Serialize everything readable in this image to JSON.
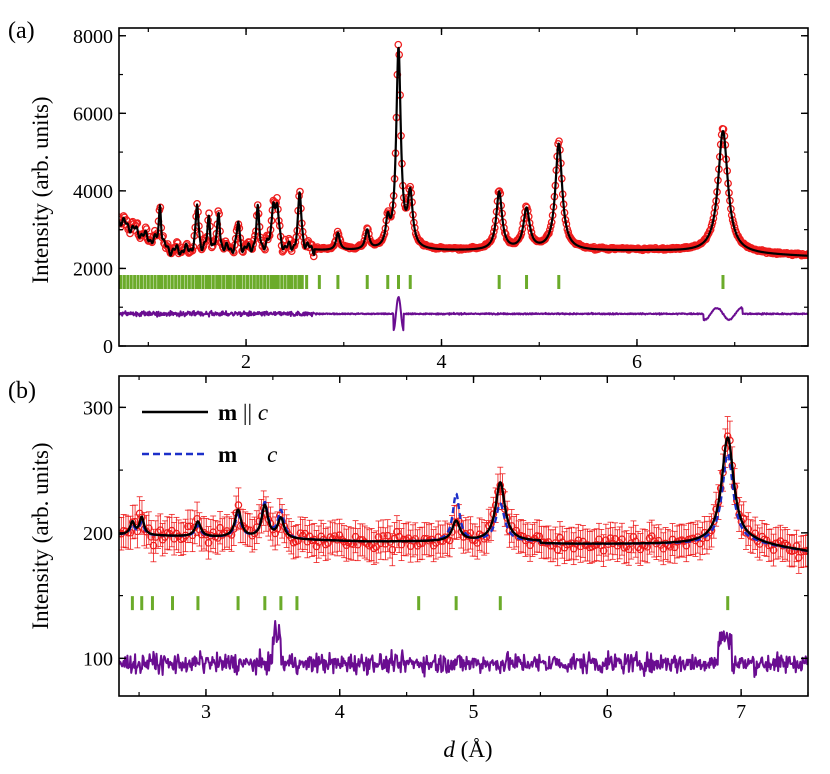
{
  "chart_data": [
    {
      "type": "line",
      "panel_label": "(a)",
      "ylabel": "Intensity (arb. units)",
      "xlabel": "",
      "xlim": [
        0.7,
        7.75
      ],
      "ylim": [
        0,
        8200
      ],
      "xticks": [
        2,
        4,
        6
      ],
      "yticks": [
        0,
        2000,
        4000,
        6000,
        8000
      ],
      "grid": false,
      "background": 2450,
      "peaks": [
        {
          "x": 1.12,
          "h": 1100,
          "w": 0.014
        },
        {
          "x": 1.5,
          "h": 1150,
          "w": 0.016
        },
        {
          "x": 1.62,
          "h": 800,
          "w": 0.016
        },
        {
          "x": 1.72,
          "h": 900,
          "w": 0.016
        },
        {
          "x": 1.92,
          "h": 700,
          "w": 0.016
        },
        {
          "x": 2.12,
          "h": 1000,
          "w": 0.018
        },
        {
          "x": 2.28,
          "h": 1200,
          "w": 0.02
        },
        {
          "x": 2.32,
          "h": 900,
          "w": 0.02
        },
        {
          "x": 2.55,
          "h": 1450,
          "w": 0.02
        },
        {
          "x": 2.94,
          "h": 450,
          "w": 0.022
        },
        {
          "x": 3.24,
          "h": 500,
          "w": 0.024
        },
        {
          "x": 3.45,
          "h": 650,
          "w": 0.024
        },
        {
          "x": 3.56,
          "h": 5150,
          "w": 0.028
        },
        {
          "x": 3.68,
          "h": 1350,
          "w": 0.03
        },
        {
          "x": 4.59,
          "h": 1500,
          "w": 0.035
        },
        {
          "x": 4.87,
          "h": 1050,
          "w": 0.038
        },
        {
          "x": 5.2,
          "h": 2750,
          "w": 0.042
        },
        {
          "x": 6.88,
          "h": 3150,
          "w": 0.06
        }
      ],
      "series": [
        {
          "name": "observed",
          "style": "open-circles",
          "color": "#ee1c1c"
        },
        {
          "name": "calculated",
          "style": "solid",
          "color": "#000000"
        },
        {
          "name": "reflections",
          "style": "tick-marks",
          "color": "#6bab2a",
          "y": 1650,
          "positions": [
            1.12,
            1.5,
            1.62,
            1.72,
            1.82,
            1.92,
            2.12,
            2.28,
            2.32,
            2.45,
            2.55,
            2.62,
            2.75,
            2.94,
            3.24,
            3.45,
            3.56,
            3.68,
            4.59,
            4.87,
            5.2,
            6.88
          ]
        },
        {
          "name": "difference",
          "style": "solid",
          "color": "#6a0d91",
          "offset": 830
        }
      ]
    },
    {
      "type": "line",
      "panel_label": "(b)",
      "ylabel": "Intensity (arb. units)",
      "xlabel": "d (Å)",
      "xlabel_symbol": "d",
      "xlabel_unit": " (Å)",
      "xlim": [
        2.35,
        7.5
      ],
      "ylim": [
        70,
        325
      ],
      "xticks": [
        3,
        4,
        5,
        6,
        7
      ],
      "yticks": [
        100,
        200,
        300
      ],
      "grid": false,
      "background": 193,
      "peaks": [
        {
          "x": 2.45,
          "h": 10,
          "w": 0.02
        },
        {
          "x": 2.52,
          "h": 14,
          "w": 0.02
        },
        {
          "x": 2.94,
          "h": 12,
          "w": 0.025
        },
        {
          "x": 3.24,
          "h": 22,
          "w": 0.028
        },
        {
          "x": 3.44,
          "h": 26,
          "w": 0.028
        },
        {
          "x": 3.56,
          "h": 16,
          "w": 0.028
        },
        {
          "x": 4.87,
          "h": 16,
          "w": 0.035
        },
        {
          "x": 5.2,
          "h": 47,
          "w": 0.042
        },
        {
          "x": 6.9,
          "h": 85,
          "w": 0.055
        }
      ],
      "perp_peaks": [
        {
          "x": 2.45,
          "h": 8,
          "w": 0.02
        },
        {
          "x": 2.52,
          "h": 10,
          "w": 0.02
        },
        {
          "x": 2.94,
          "h": 9,
          "w": 0.025
        },
        {
          "x": 3.24,
          "h": 18,
          "w": 0.028
        },
        {
          "x": 3.44,
          "h": 28,
          "w": 0.028
        },
        {
          "x": 3.56,
          "h": 22,
          "w": 0.028
        },
        {
          "x": 4.87,
          "h": 38,
          "w": 0.03
        },
        {
          "x": 5.2,
          "h": 30,
          "w": 0.04
        },
        {
          "x": 6.9,
          "h": 72,
          "w": 0.05
        }
      ],
      "legend": {
        "position": "top-left",
        "entries": [
          {
            "bold": "m",
            "relation": " || ",
            "italic": "c",
            "style": "solid",
            "color": "#000000"
          },
          {
            "bold": "m",
            "relation": "",
            "italic": "c",
            "style": "dashed",
            "color": "#1c2fc9"
          }
        ]
      },
      "series": [
        {
          "name": "observed",
          "style": "open-circles-with-errorbars",
          "color": "#ee1c1c"
        },
        {
          "name": "m || c",
          "style": "solid",
          "color": "#000000"
        },
        {
          "name": "m ⊥ c",
          "style": "dashed",
          "color": "#1c2fc9"
        },
        {
          "name": "reflections",
          "style": "tick-marks",
          "color": "#6bab2a",
          "y": 144,
          "positions": [
            2.45,
            2.52,
            2.6,
            2.75,
            2.94,
            3.24,
            3.44,
            3.56,
            3.68,
            4.59,
            4.87,
            5.2,
            6.9
          ]
        },
        {
          "name": "difference",
          "style": "solid",
          "color": "#6a0d91",
          "offset": 96
        }
      ]
    }
  ]
}
